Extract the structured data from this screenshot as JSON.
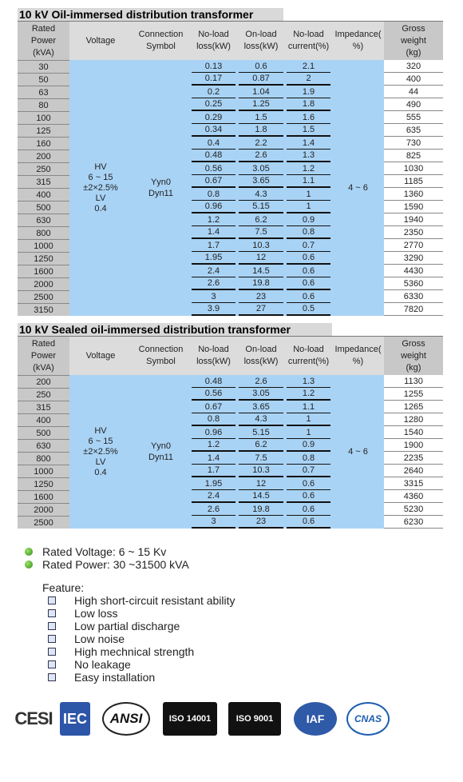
{
  "tables": [
    {
      "title": "10 kV Oil-immersed distribution transformer",
      "headers": [
        "Rated\nPower\n(kVA)",
        "Voltage",
        "Connection\nSymbol",
        "No-load\nloss(kW)",
        "On-load\nloss(kW)",
        "No-load\ncurrent(%)",
        "Impedance(\n%)",
        "Gross\nweight\n(kg)"
      ],
      "voltage": "HV\n6 ~ 15\n±2×2.5%\nLV\n0.4",
      "connection": "Yyn0\nDyn11",
      "impedance": "4 ~ 6",
      "rows": [
        [
          "30",
          "0.13",
          "0.6",
          "2.1",
          "320"
        ],
        [
          "50",
          "0.17",
          "0.87",
          "2",
          "400"
        ],
        [
          "63",
          "0.2",
          "1.04",
          "1.9",
          "44"
        ],
        [
          "80",
          "0.25",
          "1.25",
          "1.8",
          "490"
        ],
        [
          "100",
          "0.29",
          "1.5",
          "1.6",
          "555"
        ],
        [
          "125",
          "0.34",
          "1.8",
          "1.5",
          "635"
        ],
        [
          "160",
          "0.4",
          "2.2",
          "1.4",
          "730"
        ],
        [
          "200",
          "0.48",
          "2.6",
          "1.3",
          "825"
        ],
        [
          "250",
          "0.56",
          "3.05",
          "1.2",
          "1030"
        ],
        [
          "315",
          "0.67",
          "3.65",
          "1.1",
          "1185"
        ],
        [
          "400",
          "0.8",
          "4.3",
          "1",
          "1360"
        ],
        [
          "500",
          "0.96",
          "5.15",
          "1",
          "1590"
        ],
        [
          "630",
          "1.2",
          "6.2",
          "0.9",
          "1940"
        ],
        [
          "800",
          "1.4",
          "7.5",
          "0.8",
          "2350"
        ],
        [
          "1000",
          "1.7",
          "10.3",
          "0.7",
          "2770"
        ],
        [
          "1250",
          "1.95",
          "12",
          "0.6",
          "3290"
        ],
        [
          "1600",
          "2.4",
          "14.5",
          "0.6",
          "4430"
        ],
        [
          "2000",
          "2.6",
          "19.8",
          "0.6",
          "5360"
        ],
        [
          "2500",
          "3",
          "23",
          "0.6",
          "6330"
        ],
        [
          "3150",
          "3.9",
          "27",
          "0.5",
          "7820"
        ]
      ]
    },
    {
      "title": "10 kV Sealed oil-immersed distribution transformer",
      "headers": [
        "Rated\nPower\n(kVA)",
        "Voltage",
        "Connection\nSymbol",
        "No-load\nloss(kW)",
        "On-load\nloss(kW)",
        "No-load\ncurrent(%)",
        "Impedance(\n%)",
        "Gross\nweight\n(kg)"
      ],
      "voltage": "HV\n6 ~ 15\n±2×2.5%\nLV\n0.4",
      "connection": "Yyn0\nDyn11",
      "impedance": "4 ~ 6",
      "rows": [
        [
          "200",
          "0.48",
          "2.6",
          "1.3",
          "1130"
        ],
        [
          "250",
          "0.56",
          "3.05",
          "1.2",
          "1255"
        ],
        [
          "315",
          "0.67",
          "3.65",
          "1.1",
          "1265"
        ],
        [
          "400",
          "0.8",
          "4.3",
          "1",
          "1280"
        ],
        [
          "500",
          "0.96",
          "5.15",
          "1",
          "1540"
        ],
        [
          "630",
          "1.2",
          "6.2",
          "0.9",
          "1900"
        ],
        [
          "800",
          "1.4",
          "7.5",
          "0.8",
          "2235"
        ],
        [
          "1000",
          "1.7",
          "10.3",
          "0.7",
          "2640"
        ],
        [
          "1250",
          "1.95",
          "12",
          "0.6",
          "3315"
        ],
        [
          "1600",
          "2.4",
          "14.5",
          "0.6",
          "4360"
        ],
        [
          "2000",
          "2.6",
          "19.8",
          "0.6",
          "5230"
        ],
        [
          "2500",
          "3",
          "23",
          "0.6",
          "6230"
        ]
      ]
    }
  ],
  "bullets": [
    "Rated Voltage: 6 ~ 15 Kv",
    "Rated Power: 30 ~31500 kVA"
  ],
  "feature": {
    "heading": "Feature:",
    "items": [
      "High short-circuit resistant ability",
      "Low loss",
      "Low partial discharge",
      "Low noise",
      "High mechnical strength",
      "No leakage",
      "Easy installation"
    ]
  },
  "logos": [
    "CESI",
    "IEC",
    "ANSI",
    "ISO 14001",
    "ISO 9001",
    "IAF",
    "CNAS"
  ]
}
